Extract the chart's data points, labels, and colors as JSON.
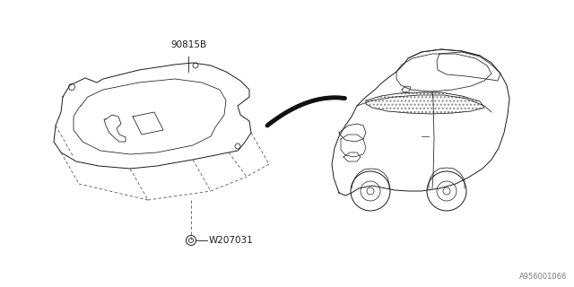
{
  "bg_color": "#ffffff",
  "line_color": "#1a1a1a",
  "dash_color": "#555555",
  "label_90815B": "90815B",
  "label_W207031": "W207031",
  "label_diagram_id": "A956001066",
  "fig_width": 6.4,
  "fig_height": 3.2,
  "dpi": 100,
  "lw_main": 0.7,
  "lw_dash": 0.6,
  "lw_inner": 0.55
}
